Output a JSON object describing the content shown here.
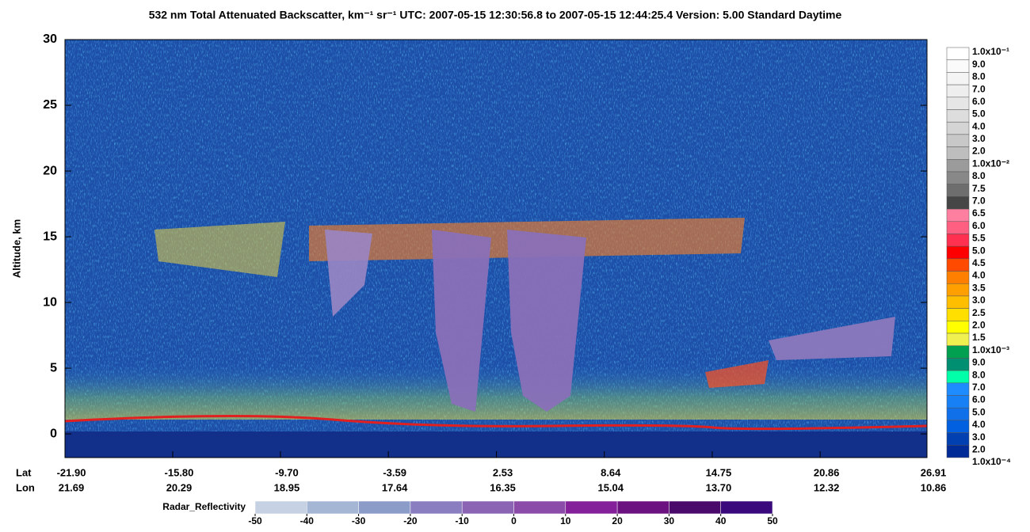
{
  "chart_data": {
    "type": "curtain",
    "title": "532 nm Total Attenuated Backscatter, km⁻¹ sr⁻¹     UTC:  2007-05-15 12:30:56.8  to  2007-05-15 12:44:25.4     Version: 5.00  Standard  Daytime",
    "ylabel": "Altitude, km",
    "ylim": [
      -1.8,
      30
    ],
    "yticks": [
      0,
      5,
      10,
      15,
      20,
      25,
      30
    ],
    "xlim": [
      -21.9,
      26.91
    ],
    "xlabel": "Lat",
    "x2label": "Lon",
    "xticks": [
      {
        "value": -21.9,
        "label": "-21.90"
      },
      {
        "value": -15.8,
        "label": "-15.80"
      },
      {
        "value": -9.7,
        "label": "-9.70"
      },
      {
        "value": -3.59,
        "label": "-3.59"
      },
      {
        "value": 2.53,
        "label": "2.53"
      },
      {
        "value": 8.64,
        "label": "8.64"
      },
      {
        "value": 14.75,
        "label": "14.75"
      },
      {
        "value": 20.86,
        "label": "20.86"
      },
      {
        "value": 26.91,
        "label": "26.91"
      }
    ],
    "lon_labels": [
      "21.69",
      "20.29",
      "18.95",
      "17.64",
      "16.35",
      "15.04",
      "13.70",
      "12.32",
      "10.86"
    ],
    "colorbar": {
      "labels": [
        "1.0x10⁻¹",
        "9.0",
        "8.0",
        "7.0",
        "6.0",
        "5.0",
        "4.0",
        "3.0",
        "2.0",
        "1.0x10⁻²",
        "8.0",
        "7.5",
        "7.0",
        "6.5",
        "6.0",
        "5.5",
        "5.0",
        "4.5",
        "4.0",
        "3.5",
        "3.0",
        "2.5",
        "2.0",
        "1.5",
        "1.0x10⁻³",
        "9.0",
        "8.0",
        "7.0",
        "6.0",
        "5.0",
        "4.0",
        "3.0",
        "2.0",
        "1.0x10⁻⁴"
      ],
      "colors": [
        "#ffffff",
        "#fafafa",
        "#f4f4f4",
        "#eeeeee",
        "#e6e6e6",
        "#dddddd",
        "#d4d4d4",
        "#c8c8c8",
        "#bebebe",
        "#9b9b9b",
        "#888888",
        "#6e6e6e",
        "#464646",
        "#ff7fa0",
        "#ff5f80",
        "#ff3050",
        "#ff0000",
        "#ff4a00",
        "#ff7f00",
        "#ff9f00",
        "#ffbf00",
        "#ffdf00",
        "#ffff00",
        "#f0f050",
        "#00a050",
        "#008f70",
        "#00ffa8",
        "#1e8cff",
        "#1880f5",
        "#1070ea",
        "#0060e0",
        "#0040b0",
        "#002a96"
      ]
    },
    "radar_colorbar": {
      "label": "Radar_Reflectivity",
      "ticks": [
        -50,
        -40,
        -30,
        -20,
        -10,
        0,
        10,
        20,
        30,
        40,
        50
      ],
      "colors": [
        "#c6d2e4",
        "#a4b6d4",
        "#8c9cc8",
        "#8a7ec0",
        "#8c64b4",
        "#8a4ca8",
        "#84209a",
        "#6c1280",
        "#4a0a6c",
        "#3a0a7c"
      ]
    }
  }
}
